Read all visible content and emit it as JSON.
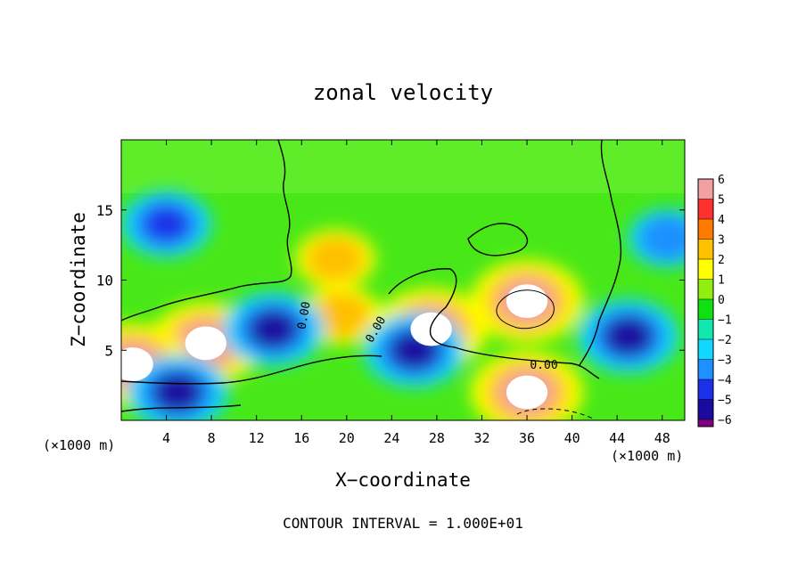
{
  "chart_data": {
    "type": "heatmap",
    "title": "zonal velocity",
    "xlabel": "X−coordinate",
    "ylabel": "Z−coordinate",
    "x_unit_label": "(×1000 m)",
    "z_unit_label": "(×1000 m)",
    "footer": "CONTOUR INTERVAL = 1.000E+01",
    "xlim": [
      0,
      50
    ],
    "ylim": [
      0,
      20
    ],
    "x_ticks": [
      4,
      8,
      12,
      16,
      20,
      24,
      28,
      32,
      36,
      40,
      44,
      48
    ],
    "y_ticks": [
      5,
      10,
      15
    ],
    "colorbar": {
      "levels": [
        6,
        5,
        4,
        3,
        2,
        1,
        0,
        -1,
        -2,
        -3,
        -4,
        -5,
        -6
      ],
      "colors": [
        "#f2a0a0",
        "#ff3030",
        "#ff7a00",
        "#ffc000",
        "#ffff00",
        "#90ee10",
        "#10e010",
        "#10e8b0",
        "#10d8ff",
        "#1e90ff",
        "#1c30e8",
        "#1a0aa0",
        "#800080"
      ]
    },
    "contour_labels": [
      "0.00",
      "0.00",
      "0.00"
    ],
    "features": [
      {
        "kind": "positive",
        "x": 7.5,
        "z": 5.5,
        "value": 6
      },
      {
        "kind": "positive",
        "x": 27.5,
        "z": 6.5,
        "value": 6
      },
      {
        "kind": "positive",
        "x": 36,
        "z": 8.5,
        "value": 6
      },
      {
        "kind": "positive",
        "x": 19.5,
        "z": 7.5,
        "value": 3
      },
      {
        "kind": "positive",
        "x": 19,
        "z": 11.5,
        "value": 3
      },
      {
        "kind": "positive",
        "x": 36,
        "z": 2,
        "value": 6
      },
      {
        "kind": "positive",
        "x": 1,
        "z": 4,
        "value": 6
      },
      {
        "kind": "negative",
        "x": 13.5,
        "z": 6.5,
        "value": -5
      },
      {
        "kind": "negative",
        "x": 4,
        "z": 14,
        "value": -4
      },
      {
        "kind": "negative",
        "x": 45,
        "z": 6,
        "value": -5
      },
      {
        "kind": "negative",
        "x": 48.5,
        "z": 13,
        "value": -3
      },
      {
        "kind": "negative",
        "x": 26,
        "z": 5,
        "value": -5
      },
      {
        "kind": "negative",
        "x": 5,
        "z": 2,
        "value": -5
      }
    ]
  }
}
